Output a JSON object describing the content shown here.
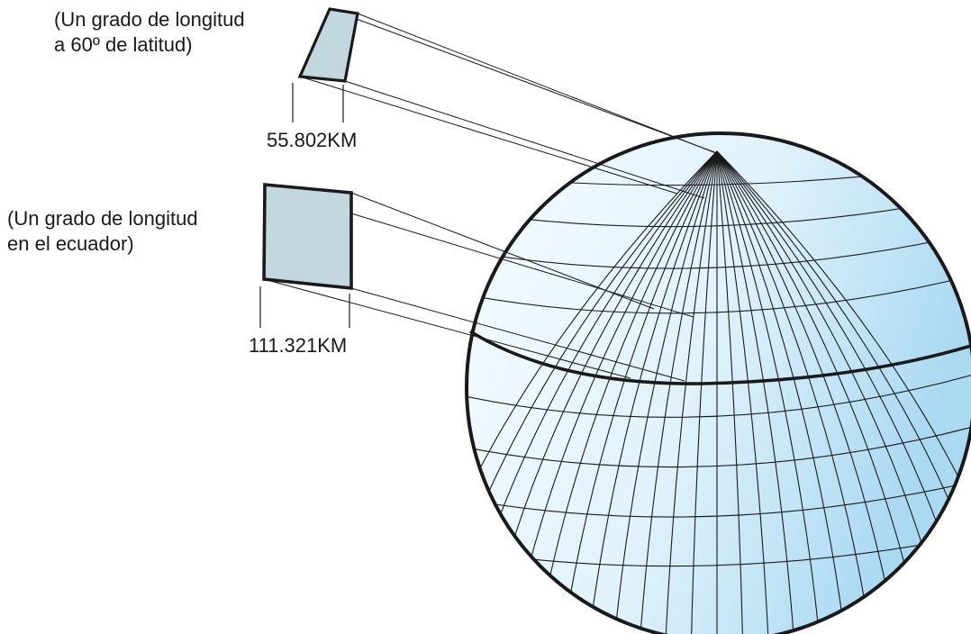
{
  "colors": {
    "globe_fill_light": "#f6fcff",
    "globe_fill_dark": "#aad9f2",
    "panel_fill": "#c3d7de",
    "stroke": "#1a1a1a",
    "background": "#ffffff"
  },
  "top_block": {
    "caption_line1": "(Un grado de longitud",
    "caption_line2": "a 60º de latitud)",
    "distance": "55.802KM"
  },
  "equator_block": {
    "caption_line1": "(Un grado de longitud",
    "caption_line2": "en el ecuador)",
    "distance": "111.321KM"
  },
  "globe": {
    "meridian_count": 24,
    "parallel_count": 8
  }
}
